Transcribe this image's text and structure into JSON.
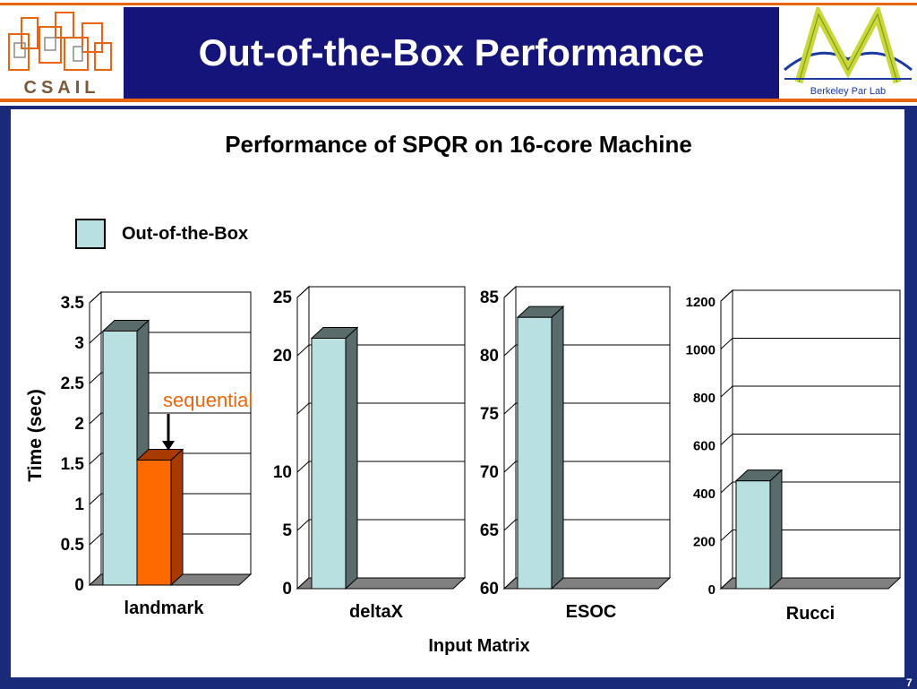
{
  "slide": {
    "title": "Out-of-the-Box Performance",
    "csail_logo_text": "CSAIL",
    "berkeley_logo_text": "Berkeley Par Lab",
    "page_number": "7",
    "colors": {
      "title_bg": "#14147a",
      "accent": "#e8660f",
      "bar_main": "#b8e0e0",
      "bar_seq": "#ff6a00"
    }
  },
  "chart_data": {
    "type": "bar",
    "title": "Performance of SPQR on 16-core Machine",
    "ylabel": "Time (sec)",
    "xlabel": "Input Matrix",
    "legend": [
      "Out-of-the-Box"
    ],
    "legend_placement": "top-left",
    "annotation": "sequential",
    "panels": [
      {
        "category": "landmark",
        "ylim": [
          0,
          3.5
        ],
        "ticks": [
          "0",
          "0.5",
          "1",
          "1.5",
          "2",
          "2.5",
          "3",
          "3.5"
        ],
        "series": [
          {
            "name": "Out-of-the-Box",
            "value": 3.15
          },
          {
            "name": "sequential",
            "value": 1.55
          }
        ]
      },
      {
        "category": "deltaX",
        "ylim": [
          0,
          25
        ],
        "ticks": [
          "0",
          "5",
          "10",
          "",
          "20",
          "25"
        ],
        "series": [
          {
            "name": "Out-of-the-Box",
            "value": 21.5
          }
        ]
      },
      {
        "category": "ESOC",
        "ylim": [
          60,
          85
        ],
        "ticks": [
          "60",
          "65",
          "70",
          "75",
          "80",
          "85"
        ],
        "series": [
          {
            "name": "Out-of-the-Box",
            "value": 83.3
          }
        ]
      },
      {
        "category": "Rucci",
        "ylim": [
          0,
          1200
        ],
        "ticks": [
          "0",
          "200",
          "400",
          "600",
          "800",
          "1000",
          "1200"
        ],
        "series": [
          {
            "name": "Out-of-the-Box",
            "value": 450
          }
        ]
      }
    ]
  }
}
